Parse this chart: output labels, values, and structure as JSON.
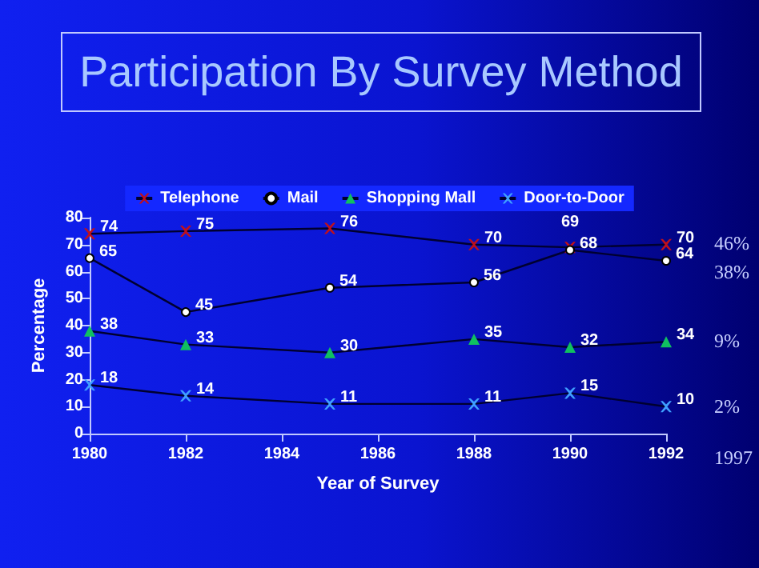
{
  "chart_data": {
    "type": "line",
    "title": "Participation By Survey Method",
    "xlabel": "Year of Survey",
    "ylabel": "Percentage",
    "x": [
      1980,
      1982,
      1985,
      1988,
      1990,
      1992
    ],
    "series": [
      {
        "name": "Telephone",
        "color": "#c0101a",
        "marker": "cross",
        "values": [
          74,
          75,
          76,
          70,
          69,
          70
        ]
      },
      {
        "name": "Mail",
        "color": "#ffffff",
        "marker": "circle",
        "values": [
          65,
          45,
          54,
          56,
          68,
          64
        ]
      },
      {
        "name": "Shopping Mall",
        "color": "#10c060",
        "marker": "triangle",
        "values": [
          38,
          33,
          30,
          35,
          32,
          34
        ]
      },
      {
        "name": "Door-to-Door",
        "color": "#40a0ff",
        "marker": "cross",
        "values": [
          18,
          14,
          11,
          11,
          15,
          10
        ]
      }
    ],
    "xlim": [
      1980,
      1992
    ],
    "xticks": [
      1980,
      1982,
      1984,
      1986,
      1988,
      1990,
      1992
    ],
    "ylim": [
      0,
      80
    ],
    "yticks": [
      0,
      10,
      20,
      30,
      40,
      50,
      60,
      70,
      80
    ],
    "grid": false,
    "legend": "top",
    "data_labels": true,
    "annotations": [
      "46%",
      "38%",
      "9%",
      "2%",
      "1997"
    ]
  }
}
